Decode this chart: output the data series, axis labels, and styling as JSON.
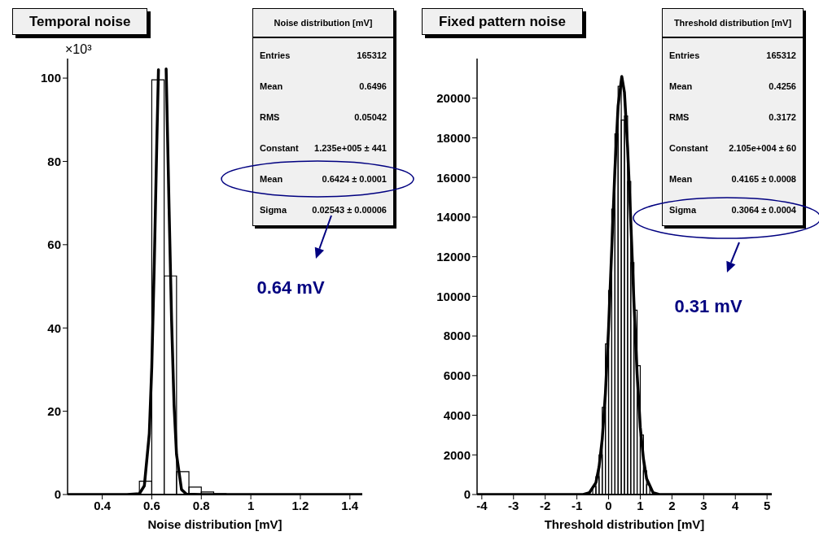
{
  "chart_data": [
    {
      "type": "histogram",
      "title": "Temporal noise",
      "xlabel": "Noise distribution [mV]",
      "ylabel": "×10³",
      "color": "#000000",
      "bins": [
        0.55,
        0.6,
        0.65,
        0.7,
        0.75,
        0.8,
        0.85,
        0.9
      ],
      "values": [
        3.2,
        99.6,
        52.5,
        5.5,
        1.8,
        0.6,
        0.2
      ],
      "series": [
        {
          "type": "line",
          "color": "#000000",
          "x": [
            0.26,
            0.5,
            0.55,
            0.57,
            0.59,
            0.6,
            0.61,
            0.62,
            0.627,
            0.6424,
            0.658,
            0.67,
            0.68,
            0.69,
            0.7,
            0.72,
            0.74,
            0.8,
            1.45
          ],
          "values": [
            0,
            0,
            0.2,
            2.1,
            14.6,
            30.6,
            55.1,
            83.6,
            102,
            null,
            102.2,
            68.4,
            41.9,
            21.5,
            9.6,
            1.2,
            0.1,
            0,
            0
          ]
        }
      ],
      "xlim": [
        0.26,
        1.45
      ],
      "xticks": [
        0.4,
        0.6,
        0.8,
        1,
        1.2,
        1.4
      ],
      "ylim": [
        0,
        104.7
      ],
      "yticks": [
        0,
        20,
        40,
        60,
        80,
        100
      ],
      "annotations": [
        "Noise distribution [mV]",
        "Entries",
        "165312",
        "Mean",
        "0.6496",
        "RMS",
        "0.05042",
        "Constant",
        "1.235e+005 ± 441",
        "Mean",
        "0.6424 ± 0.0001",
        "Sigma",
        "0.02543 ± 0.00006",
        "0.64 mV"
      ]
    },
    {
      "type": "histogram",
      "title": "Fixed pattern noise",
      "xlabel": "Threshold distribution [mV]",
      "color": "#000000",
      "bins": [
        -0.7,
        -0.6,
        -0.5,
        -0.4,
        -0.3,
        -0.2,
        -0.1,
        0,
        0.1,
        0.2,
        0.3,
        0.4,
        0.5,
        0.6,
        0.7,
        0.8,
        0.9,
        1,
        1.1,
        1.2,
        1.3
      ],
      "values": [
        0,
        null,
        400,
        900,
        2000,
        4400,
        7600,
        10300,
        14400,
        18200,
        20600,
        18900,
        19100,
        15800,
        11700,
        9300,
        6500,
        3000,
        1200,
        500
      ],
      "series": [
        {
          "type": "line",
          "color": "#000000",
          "x": [
            -4.15,
            -1,
            -0.8,
            -0.6,
            -0.4,
            -0.3,
            -0.2,
            -0.1,
            0,
            0.1,
            0.2,
            0.3,
            0.4165,
            0.5,
            0.6,
            0.7,
            0.8,
            0.9,
            1,
            1.1,
            1.2,
            1.4,
            1.6,
            1.8,
            5.15
          ],
          "values": [
            0,
            0,
            0,
            100,
            600,
            1400,
            2800,
            5100,
            8400,
            12400,
            16400,
            19600,
            21100,
            20300,
            17500,
            13800,
            9700,
            6100,
            3400,
            1800,
            800,
            100,
            0,
            0,
            0
          ]
        }
      ],
      "xlim": [
        -4.15,
        5.15
      ],
      "xticks": [
        -4,
        -3,
        -2,
        -1,
        0,
        1,
        2,
        3,
        4,
        5
      ],
      "ylim": [
        0,
        22000
      ],
      "yticks": [
        0,
        2000,
        4000,
        6000,
        8000,
        10000,
        12000,
        14000,
        16000,
        18000,
        20000
      ],
      "annotations": [
        "Threshold distribution [mV]",
        "Entries",
        "165312",
        "Mean",
        "0.4256",
        "RMS",
        "0.3172",
        "Constant",
        "2.105e+004 ± 60",
        "Mean",
        "0.4165 ± 0.0008",
        "Sigma",
        "0.3064 ± 0.0004",
        "0.31 mV"
      ]
    }
  ]
}
